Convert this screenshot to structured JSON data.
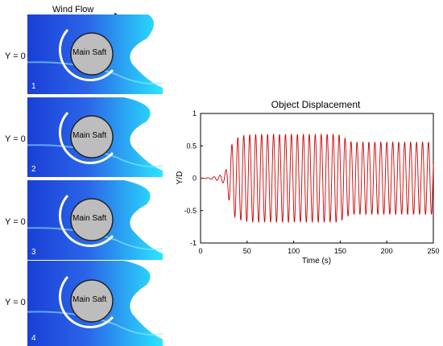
{
  "figure": {
    "wind_flow_label": "Wind Flow",
    "panels": [
      {
        "number": "1",
        "y_label": "Y = 0",
        "shaft_label": "Main Saft"
      },
      {
        "number": "2",
        "y_label": "Y = 0",
        "shaft_label": "Main Saft"
      },
      {
        "number": "3",
        "y_label": "Y = 0",
        "shaft_label": "Main Saft"
      },
      {
        "number": "4",
        "y_label": "Y = 0",
        "shaft_label": "Main Saft"
      }
    ],
    "colors": {
      "flow_dark": "#1a3fd6",
      "flow_light": "#29e6ff",
      "shaft": "#bdbdbd",
      "signal": "#cc0000"
    }
  },
  "chart_data": {
    "type": "line",
    "title": "Object Displacement",
    "xlabel": "Time (s)",
    "ylabel": "Y/D",
    "xlim": [
      0,
      250
    ],
    "ylim": [
      -1,
      1
    ],
    "xticks": [
      "0",
      "50",
      "100",
      "150",
      "200",
      "250"
    ],
    "yticks": [
      "1",
      "0.5",
      "0",
      "-0.5",
      "-1"
    ],
    "grid": false,
    "series": [
      {
        "x": [
          0,
          10,
          20,
          25,
          28,
          30,
          32,
          35,
          40,
          45,
          50,
          55,
          60,
          65,
          70,
          75,
          80,
          85,
          90,
          95,
          100,
          105,
          110,
          115,
          120,
          125,
          130,
          135,
          140,
          145,
          150,
          155,
          160,
          165,
          170,
          175,
          180,
          185,
          190,
          195,
          200,
          205,
          210,
          215,
          220,
          225,
          230,
          235,
          240,
          245,
          250
        ],
        "amplitude": [
          0.0,
          0.01,
          0.04,
          0.08,
          0.15,
          0.3,
          0.45,
          0.58,
          0.63,
          0.66,
          0.67,
          0.68,
          0.68,
          0.68,
          0.68,
          0.68,
          0.68,
          0.68,
          0.68,
          0.68,
          0.68,
          0.68,
          0.68,
          0.68,
          0.68,
          0.68,
          0.68,
          0.68,
          0.68,
          0.68,
          0.67,
          0.62,
          0.57,
          0.56,
          0.56,
          0.56,
          0.56,
          0.56,
          0.56,
          0.56,
          0.56,
          0.56,
          0.56,
          0.56,
          0.56,
          0.56,
          0.56,
          0.56,
          0.56,
          0.56,
          0.56
        ],
        "period_s": 6.4
      }
    ]
  }
}
